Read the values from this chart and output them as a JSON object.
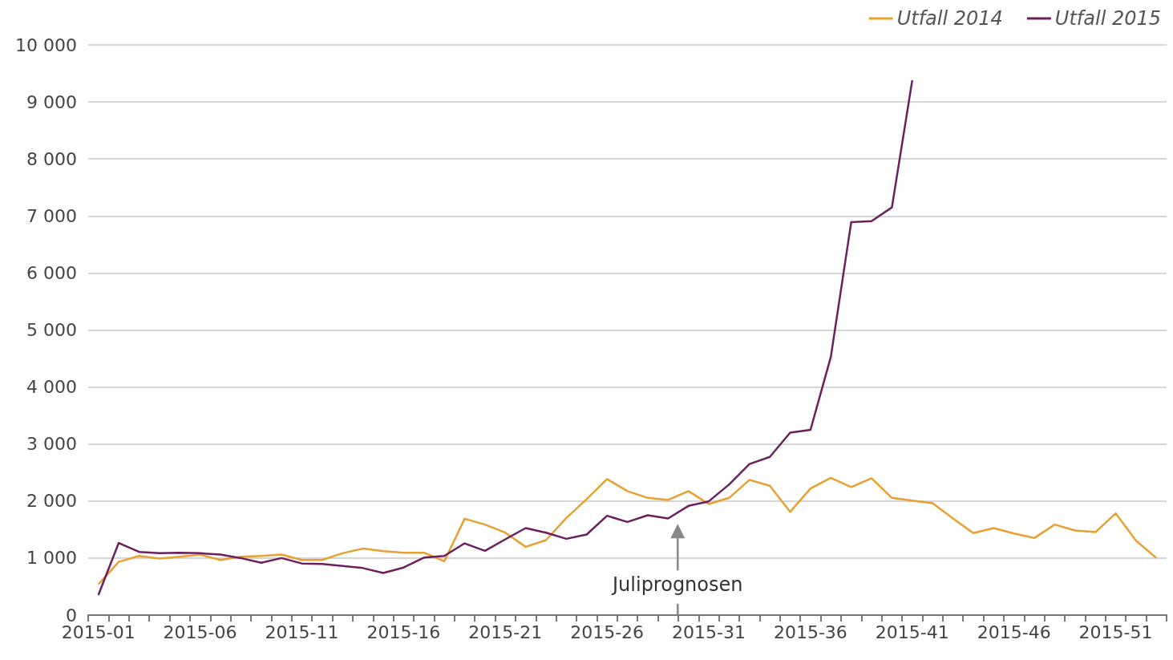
{
  "chart_data": {
    "type": "line",
    "categories": [
      "2015-01",
      null,
      null,
      null,
      null,
      "2015-06",
      null,
      null,
      null,
      null,
      "2015-11",
      null,
      null,
      null,
      null,
      "2015-16",
      null,
      null,
      null,
      null,
      "2015-21",
      null,
      null,
      null,
      null,
      "2015-26",
      null,
      null,
      null,
      null,
      "2015-31",
      null,
      null,
      null,
      null,
      "2015-36",
      null,
      null,
      null,
      null,
      "2015-41",
      null,
      null,
      null,
      null,
      "2015-46",
      null,
      null,
      null,
      null,
      "2015-51",
      null,
      null
    ],
    "series": [
      {
        "name": "Utfall 2014",
        "color": "#e8a030",
        "values": [
          540,
          934,
          1038,
          990,
          1024,
          1062,
          967,
          1024,
          1038,
          1062,
          967,
          967,
          1085,
          1166,
          1123,
          1095,
          1095,
          943,
          1690,
          1587,
          1446,
          1197,
          1315,
          1704,
          2033,
          2385,
          2174,
          2056,
          2019,
          2174,
          1948,
          2056,
          2371,
          2268,
          1812,
          2220,
          2408,
          2244,
          2399,
          2056,
          2009,
          1962,
          1695,
          1437,
          1526,
          1432,
          1352,
          1587,
          1484,
          1455,
          1784,
          1305,
          1000
        ]
      },
      {
        "name": "Utfall 2015",
        "color": "#6b1f5e",
        "values": [
          351,
          1265,
          1109,
          1085,
          1095,
          1085,
          1062,
          1000,
          919,
          1000,
          905,
          896,
          863,
          825,
          739,
          834,
          1009,
          1038,
          1258,
          1127,
          1329,
          1526,
          1446,
          1338,
          1413,
          1742,
          1634,
          1751,
          1695,
          1915,
          1995,
          2291,
          2650,
          2775,
          3200,
          3250,
          4530,
          6890,
          6910,
          7150,
          9380,
          null,
          null,
          null,
          null,
          null,
          null,
          null,
          null,
          null,
          null,
          null,
          null
        ]
      }
    ],
    "ylim": [
      0,
      10000
    ],
    "yticks": [
      0,
      {
        "value": 1000,
        "label": "1 000"
      },
      {
        "value": 2000,
        "label": "2 000"
      },
      {
        "value": 3000,
        "label": "3 000"
      },
      {
        "value": 4000,
        "label": "4 000"
      },
      {
        "value": 5000,
        "label": "5 000"
      },
      {
        "value": 6000,
        "label": "6 000"
      },
      {
        "value": 7000,
        "label": "7 000"
      },
      {
        "value": 8000,
        "label": "8 000"
      },
      {
        "value": 9000,
        "label": "9 000"
      },
      {
        "value": 10000,
        "label": "10 000"
      }
    ],
    "grid": "y",
    "legend": "top right",
    "marker": "none",
    "line_style": "solid",
    "annotations": [
      "Juliprognosen"
    ]
  }
}
